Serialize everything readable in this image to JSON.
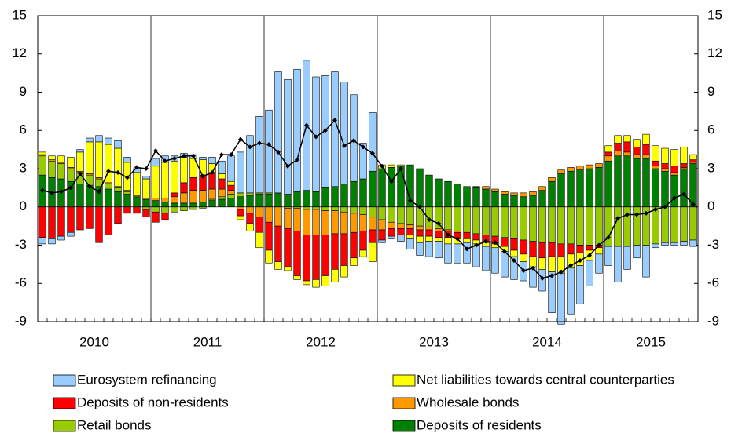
{
  "chart_data": {
    "type": "stacked-bar-line",
    "categories": [
      null,
      null,
      null,
      null,
      null,
      null,
      "2010",
      null,
      null,
      null,
      null,
      null,
      null,
      null,
      null,
      null,
      null,
      null,
      "2011",
      null,
      null,
      null,
      null,
      null,
      null,
      null,
      null,
      null,
      null,
      null,
      "2012",
      null,
      null,
      null,
      null,
      null,
      null,
      null,
      null,
      null,
      null,
      null,
      "2013",
      null,
      null,
      null,
      null,
      null,
      null,
      null,
      null,
      null,
      null,
      null,
      "2014",
      null,
      null,
      null,
      null,
      null,
      null,
      null,
      null,
      null,
      null,
      "2015",
      null,
      null,
      null,
      null
    ],
    "ylim": [
      -9,
      15
    ],
    "yticks": [
      -9,
      -6,
      -3,
      0,
      3,
      6,
      9,
      12,
      15
    ],
    "y2lim": [
      -9,
      15
    ],
    "y2ticks": [
      -9,
      -6,
      -3,
      0,
      3,
      6,
      9,
      12,
      15
    ],
    "series": [
      {
        "name": "Eurosystem refinancing",
        "color": "#99ccff",
        "values": [
          -0.5,
          -0.4,
          -0.3,
          -0.3,
          0.2,
          0.3,
          0.5,
          0.5,
          0.6,
          0.4,
          0.3,
          0.2,
          0.6,
          0.5,
          0.4,
          0.3,
          0.3,
          0.2,
          0.5,
          1.0,
          2.0,
          3.2,
          4.5,
          6.0,
          6.5,
          9.5,
          9.0,
          9.6,
          10.2,
          9.0,
          8.8,
          9.0,
          8.0,
          6.8,
          2.8,
          4.6,
          -0.2,
          -0.2,
          -0.5,
          -0.8,
          -1.0,
          -1.2,
          -1.3,
          -1.5,
          -1.5,
          -1.6,
          -1.8,
          -1.9,
          -2.0,
          -2.0,
          -1.8,
          -1.5,
          -1.6,
          -1.7,
          -3.2,
          -4.0,
          -3.6,
          -3.0,
          -2.0,
          -1.5,
          -1.5,
          -2.8,
          -1.8,
          -1.0,
          -2.5,
          -0.3,
          -0.2,
          -0.2,
          -0.3,
          -0.5
        ]
      },
      {
        "name": "Net liabilities towards central counterparties",
        "color": "#ffff00",
        "values": [
          0.2,
          0.3,
          0.5,
          0.8,
          1.5,
          2.5,
          2.8,
          3.0,
          3.0,
          2.2,
          1.8,
          1.5,
          2.5,
          2.8,
          2.5,
          2.0,
          1.5,
          1.2,
          0.7,
          0.4,
          0.3,
          -0.3,
          -0.6,
          -1.2,
          -1.0,
          -0.6,
          -0.3,
          -0.3,
          -0.3,
          -0.6,
          -0.8,
          -1.0,
          -0.9,
          -0.6,
          -0.5,
          -1.5,
          0.3,
          0.2,
          0.1,
          -0.3,
          -0.5,
          -0.4,
          -0.3,
          -0.5,
          -0.4,
          -0.3,
          -0.3,
          -0.3,
          -0.3,
          -0.4,
          -0.5,
          -0.6,
          -0.8,
          -0.9,
          -1.2,
          -1.3,
          -1.1,
          -1.0,
          -0.8,
          -0.5,
          0.5,
          0.6,
          0.5,
          0.6,
          0.8,
          1.2,
          1.2,
          1.3,
          1.3,
          0.4
        ]
      },
      {
        "name": "Deposits of non-residents",
        "color": "#ff0000",
        "values": [
          -2.4,
          -2.5,
          -2.3,
          -2.0,
          -1.8,
          -1.7,
          -2.8,
          -2.2,
          -1.3,
          -0.5,
          -0.5,
          -0.6,
          -0.8,
          -0.5,
          0.3,
          0.8,
          1.0,
          1.2,
          1.3,
          0.8,
          0.4,
          -0.5,
          -0.8,
          -1.2,
          -2.2,
          -2.8,
          -3.0,
          -3.5,
          -3.6,
          -3.5,
          -3.2,
          -2.8,
          -2.5,
          -2.0,
          -1.5,
          -1.0,
          -0.8,
          -0.6,
          -0.5,
          -0.5,
          -0.5,
          -0.5,
          -0.5,
          -0.5,
          -0.5,
          -0.5,
          -0.5,
          -0.6,
          -0.6,
          -0.7,
          -0.9,
          -1.1,
          -1.2,
          -1.2,
          -1.1,
          -1.0,
          -0.8,
          -0.6,
          -0.4,
          -0.2,
          0.3,
          0.6,
          0.8,
          0.6,
          0.8,
          0.4,
          0.4,
          0.5,
          0.3,
          0.2
        ]
      },
      {
        "name": "Wholesale bonds",
        "color": "#ff9900",
        "values": [
          0.1,
          0.1,
          0.1,
          0.1,
          0.1,
          0.1,
          0.1,
          0.1,
          0.1,
          0.1,
          0.1,
          0.1,
          0.2,
          0.3,
          0.5,
          0.8,
          1.0,
          0.9,
          0.8,
          0.6,
          0.3,
          -0.2,
          -0.5,
          -0.8,
          -1.2,
          -1.5,
          -1.6,
          -1.8,
          -2.0,
          -2.0,
          -1.9,
          -1.8,
          -1.7,
          -1.5,
          -1.3,
          -1.0,
          -0.8,
          -0.5,
          -0.4,
          -0.3,
          -0.3,
          -0.2,
          -0.2,
          -0.1,
          -0.1,
          0,
          0.1,
          0.2,
          0.2,
          0.2,
          0.2,
          0.3,
          0.3,
          0.3,
          0.3,
          0.3,
          0.3,
          0.3,
          0.3,
          0.3,
          0.4,
          0.4,
          0.3,
          0.3,
          0.3,
          0.2,
          0.2,
          0.2,
          0.1,
          0.1
        ]
      },
      {
        "name": "Retail bonds",
        "color": "#99cc00",
        "values": [
          1.5,
          1.3,
          1.2,
          1.0,
          0.9,
          0.8,
          0.6,
          0.4,
          0.3,
          0.2,
          0,
          -0.2,
          -0.4,
          -0.5,
          -0.4,
          -0.3,
          -0.2,
          -0.1,
          0.1,
          0.2,
          0.3,
          0.3,
          0.2,
          0.1,
          0.1,
          0,
          -0.1,
          -0.1,
          -0.2,
          -0.2,
          -0.3,
          -0.3,
          -0.4,
          -0.5,
          -0.6,
          -0.8,
          -1.0,
          -1.2,
          -1.3,
          -1.4,
          -1.5,
          -1.6,
          -1.7,
          -1.8,
          -1.9,
          -2.0,
          -2.1,
          -2.2,
          -2.3,
          -2.4,
          -2.5,
          -2.6,
          -2.7,
          -2.8,
          -2.8,
          -2.9,
          -2.9,
          -3.0,
          -3.0,
          -3.0,
          -3.1,
          -3.1,
          -3.1,
          -3.0,
          -3.0,
          -2.9,
          -2.8,
          -2.8,
          -2.7,
          -2.6
        ]
      },
      {
        "name": "Deposits of residents",
        "color": "#008000",
        "values": [
          2.5,
          2.3,
          2.2,
          2.0,
          1.8,
          1.7,
          1.6,
          1.4,
          1.2,
          1.0,
          0.8,
          0.6,
          0.5,
          0.4,
          0.3,
          0.3,
          0.3,
          0.4,
          0.5,
          0.6,
          0.7,
          0.8,
          0.9,
          1.0,
          1.0,
          1.1,
          1.0,
          1.2,
          1.3,
          1.2,
          1.5,
          1.6,
          1.8,
          2.0,
          2.2,
          2.8,
          3.0,
          3.1,
          3.2,
          3.3,
          3.0,
          2.5,
          2.2,
          2.0,
          1.8,
          1.6,
          1.5,
          1.4,
          1.2,
          1.0,
          0.9,
          0.8,
          0.9,
          1.3,
          2.0,
          2.6,
          2.8,
          2.9,
          3.0,
          3.1,
          3.6,
          4.0,
          4.0,
          3.8,
          3.8,
          3.0,
          2.8,
          2.5,
          3.0,
          3.4
        ]
      }
    ],
    "line": {
      "color": "#000000",
      "values": [
        1.3,
        1.1,
        1.2,
        1.5,
        2.6,
        1.6,
        1.2,
        2.8,
        2.7,
        2.3,
        3.1,
        3.0,
        4.4,
        3.6,
        3.8,
        4.0,
        4.0,
        2.4,
        2.7,
        4.1,
        4.1,
        5.3,
        4.7,
        5.0,
        4.9,
        4.3,
        3.2,
        3.7,
        6.4,
        5.5,
        6.0,
        6.8,
        4.8,
        5.2,
        4.7,
        4.2,
        3.2,
        2.0,
        3.0,
        0.5,
        0,
        -1.0,
        -1.3,
        -2.2,
        -2.5,
        -3.3,
        -3.0,
        -2.7,
        -2.8,
        -3.5,
        -4.2,
        -5.0,
        -4.8,
        -5.6,
        -5.4,
        -5.1,
        -4.6,
        -4.2,
        -3.8,
        -3.0,
        -2.4,
        -0.9,
        -0.6,
        -0.6,
        -0.5,
        -0.2,
        0,
        0.7,
        1.0,
        0.2
      ]
    }
  }
}
